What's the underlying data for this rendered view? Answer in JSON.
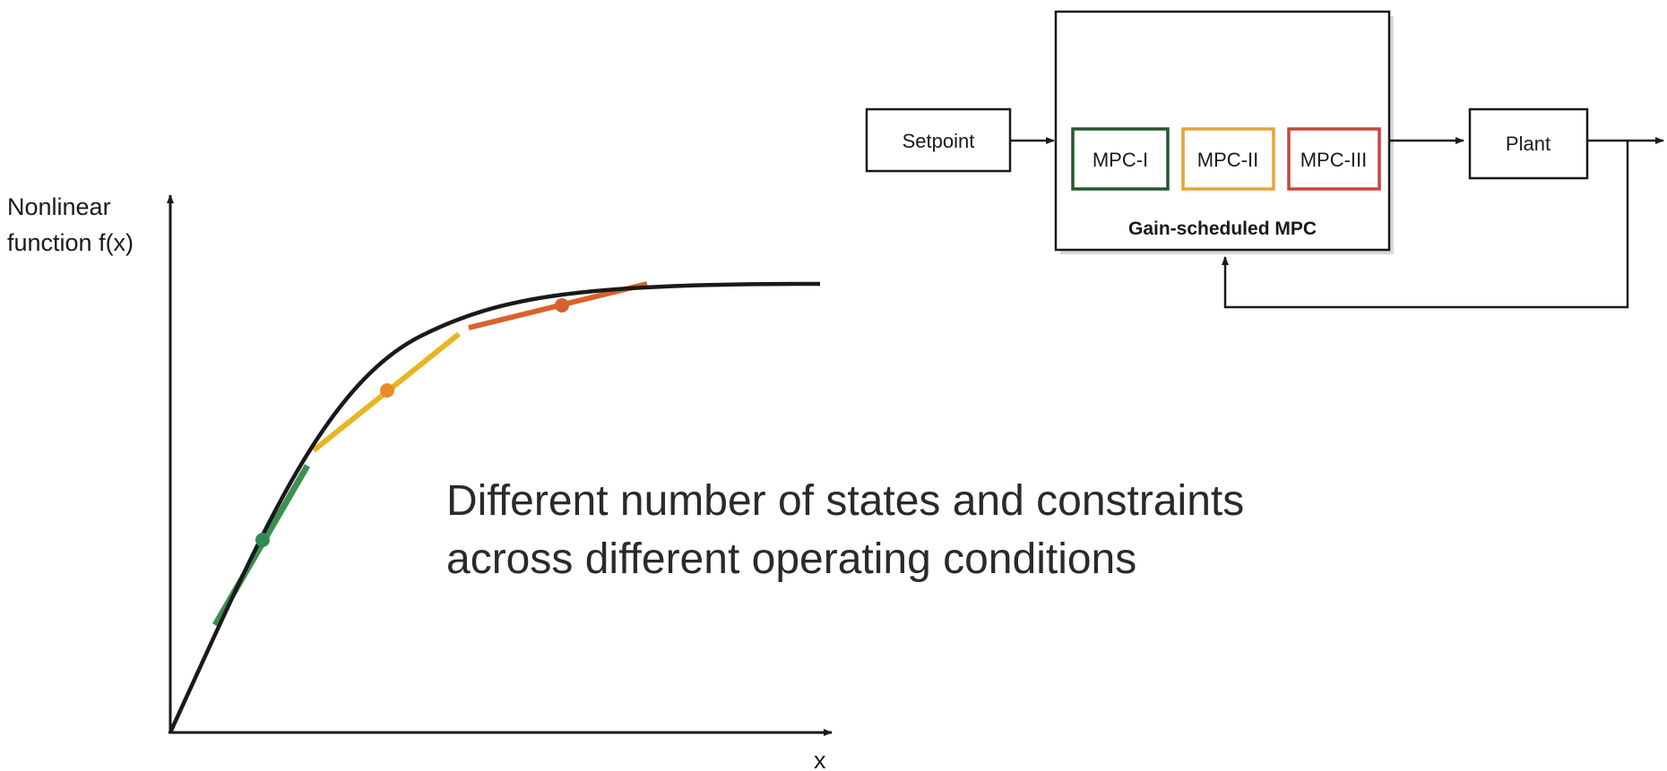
{
  "plot": {
    "y_label_line1": "Nonlinear",
    "y_label_line2": "function f(x)",
    "x_label": "x",
    "operating_points": [
      {
        "id": "op1",
        "color": "#2e8b57"
      },
      {
        "id": "op2",
        "color": "#e98a2c"
      },
      {
        "id": "op3",
        "color": "#d4622a"
      }
    ],
    "tangent_colors": [
      "#3c9150",
      "#eab422",
      "#d8622c"
    ],
    "curve_color": "#1a1a1a"
  },
  "caption": {
    "line1": "Different number of states and constraints",
    "line2": "across different operating conditions"
  },
  "block_diagram": {
    "setpoint": "Setpoint",
    "plant": "Plant",
    "controller_title": "Gain-scheduled MPC",
    "controllers": [
      {
        "label": "MPC-I",
        "color": "#24562f"
      },
      {
        "label": "MPC-II",
        "color": "#e8a23a"
      },
      {
        "label": "MPC-III",
        "color": "#c9443a"
      }
    ]
  }
}
